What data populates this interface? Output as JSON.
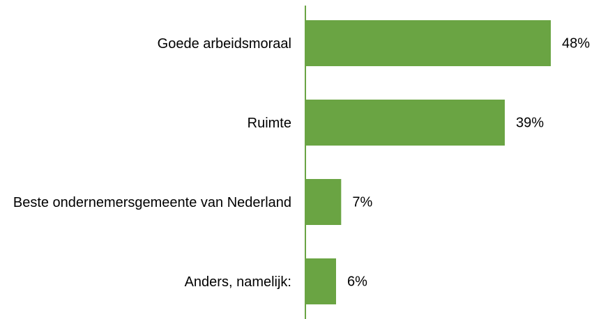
{
  "chart_data": {
    "type": "bar",
    "orientation": "horizontal",
    "categories": [
      "Goede arbeidsmoraal",
      "Ruimte",
      "Beste ondernemersgemeente van Nederland",
      "Anders, namelijk:"
    ],
    "values": [
      48,
      39,
      7,
      6
    ],
    "value_labels": [
      "48%",
      "39%",
      "7%",
      "6%"
    ],
    "color": "#6aa443"
  }
}
